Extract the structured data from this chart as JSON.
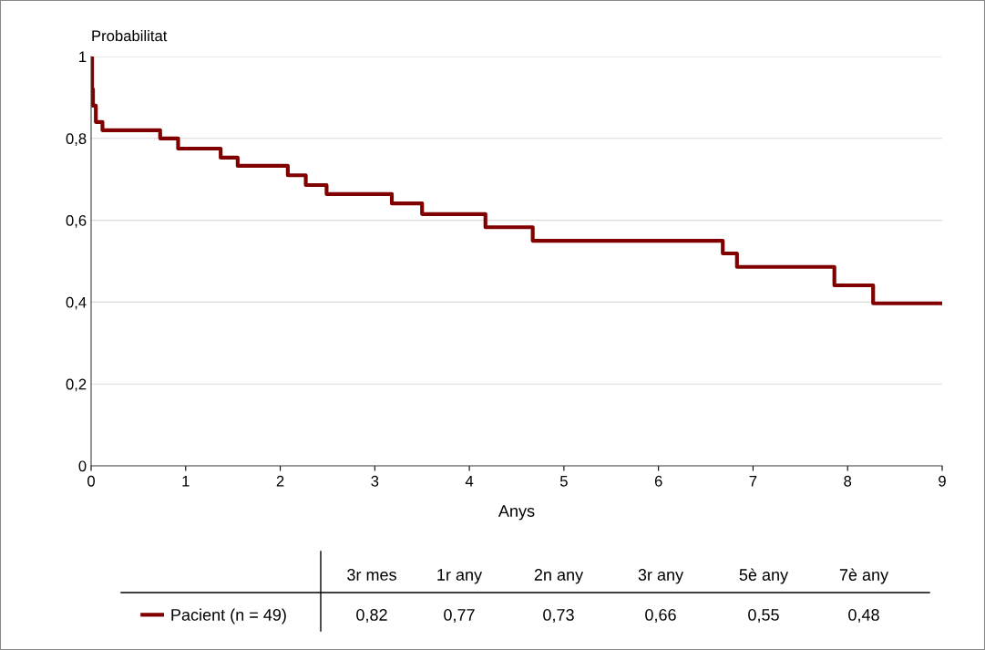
{
  "chart_data": {
    "type": "step",
    "xlabel": "Anys",
    "ylabel": "Probabilitat",
    "x": [
      0,
      0.01,
      0.02,
      0.05,
      0.12,
      0.73,
      0.92,
      1.37,
      1.55,
      2.08,
      2.27,
      2.49,
      3.18,
      3.5,
      4.17,
      4.67,
      6.68,
      6.83,
      7.86,
      8.27,
      9
    ],
    "series": [
      {
        "name": "Pacient (n = 49)",
        "color": "#800000",
        "values": [
          1,
          0.92,
          0.88,
          0.84,
          0.82,
          0.8,
          0.775,
          0.753,
          0.733,
          0.71,
          0.686,
          0.664,
          0.641,
          0.615,
          0.583,
          0.55,
          0.519,
          0.486,
          0.441,
          0.397,
          0.397
        ]
      }
    ],
    "xlim": [
      0,
      9
    ],
    "xticks": [
      0,
      1,
      2,
      3,
      4,
      5,
      6,
      7,
      8,
      9
    ],
    "ylim": [
      0,
      1
    ],
    "yticks": [
      {
        "value": 0,
        "label": "0"
      },
      {
        "value": 0.2,
        "label": "0,2"
      },
      {
        "value": 0.4,
        "label": "0,4"
      },
      {
        "value": 0.6,
        "label": "0,6"
      },
      {
        "value": 0.8,
        "label": "0,8"
      },
      {
        "value": 1,
        "label": "1"
      }
    ],
    "grid": "y",
    "legend": "bottom",
    "marker": "none",
    "line_style": "solid",
    "annotations": [
      "3r mes",
      "1r any",
      "2n any",
      "3r any",
      "5è any",
      "7è any",
      "0,82",
      "0,77",
      "0,73",
      "0,66",
      "0,55",
      "0,48"
    ]
  }
}
